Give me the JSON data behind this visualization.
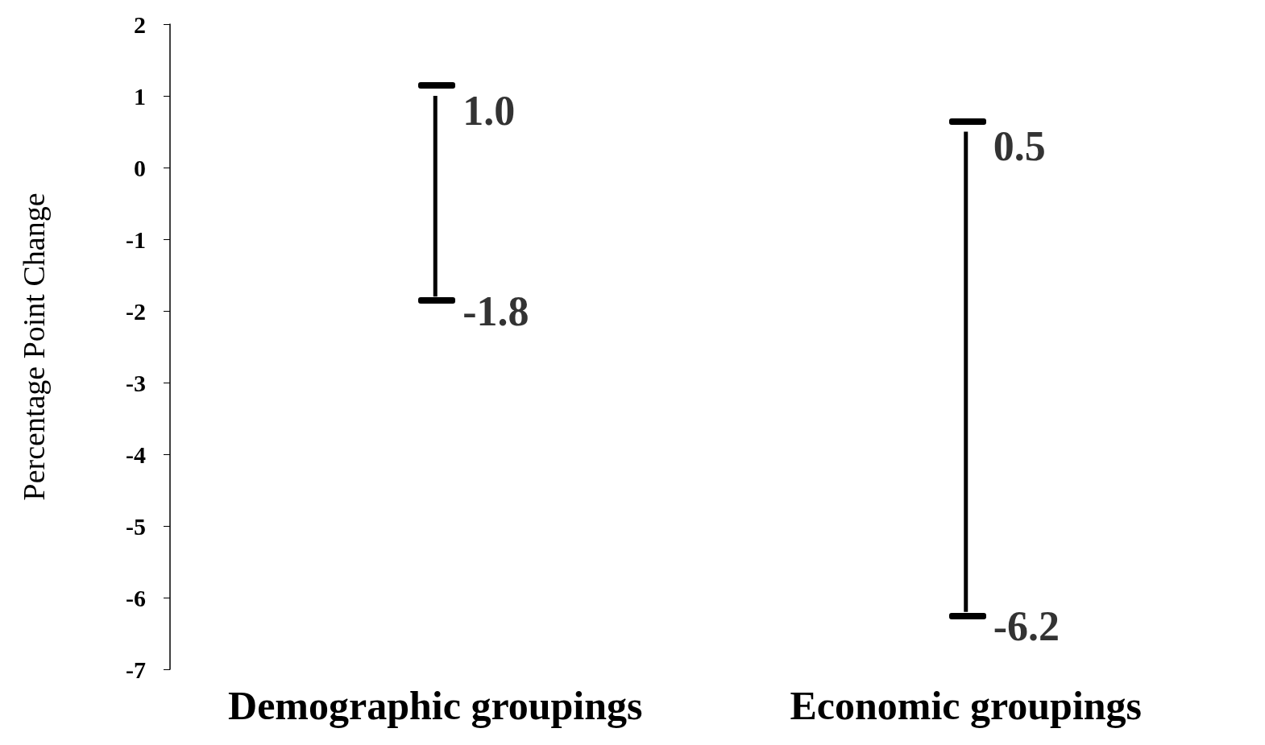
{
  "chart_data": {
    "type": "bar",
    "ylabel": "Percentage Point Change",
    "categories": [
      "Demographic groupings",
      "Economic groupings"
    ],
    "base": [
      -1.8,
      -6.2
    ],
    "values": [
      2.8,
      6.7
    ],
    "color": "#000000",
    "ylim": [
      -7,
      2
    ],
    "yticks": [
      -7,
      -6,
      -5,
      -4,
      -3,
      -2,
      -1,
      0,
      1,
      2
    ],
    "grid": false,
    "annotations": [
      {
        "text": "1.0",
        "x": "Demographic groupings",
        "y": 1.0
      },
      {
        "text": "-1.8",
        "x": "Demographic groupings",
        "y": -1.8
      },
      {
        "text": "0.5",
        "x": "Economic groupings",
        "y": 0.5
      },
      {
        "text": "-6.2",
        "x": "Economic groupings",
        "y": -6.2
      }
    ]
  }
}
